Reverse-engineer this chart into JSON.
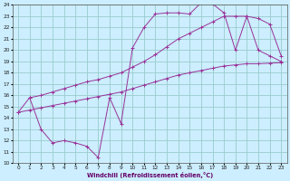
{
  "xlabel": "Windchill (Refroidissement éolien,°C)",
  "bg_color": "#cceeff",
  "grid_color": "#99cccc",
  "line_color": "#993399",
  "xlim": [
    -0.5,
    23.5
  ],
  "ylim": [
    10,
    24
  ],
  "xticks": [
    0,
    1,
    2,
    3,
    4,
    5,
    6,
    7,
    8,
    9,
    10,
    11,
    12,
    13,
    14,
    15,
    16,
    17,
    18,
    19,
    20,
    21,
    22,
    23
  ],
  "yticks": [
    10,
    11,
    12,
    13,
    14,
    15,
    16,
    17,
    18,
    19,
    20,
    21,
    22,
    23,
    24
  ],
  "series1_x": [
    0,
    1,
    2,
    3,
    4,
    5,
    6,
    7,
    8,
    9,
    10,
    11,
    12,
    13,
    14,
    15,
    16,
    17,
    18,
    19,
    20,
    21,
    22,
    23
  ],
  "series1_y": [
    14.5,
    14.7,
    14.9,
    15.1,
    15.3,
    15.5,
    15.7,
    15.9,
    16.1,
    16.3,
    16.6,
    16.9,
    17.2,
    17.5,
    17.8,
    18.0,
    18.2,
    18.4,
    18.6,
    18.7,
    18.8,
    18.8,
    18.85,
    18.9
  ],
  "series2_x": [
    0,
    1,
    2,
    3,
    4,
    5,
    6,
    7,
    8,
    9,
    10,
    11,
    12,
    13,
    14,
    15,
    16,
    17,
    18,
    19,
    20,
    21,
    22,
    23
  ],
  "series2_y": [
    14.5,
    15.8,
    13.0,
    11.8,
    12.0,
    11.8,
    11.5,
    10.5,
    15.8,
    13.5,
    20.2,
    22.0,
    23.2,
    23.3,
    23.3,
    23.2,
    24.2,
    24.1,
    23.3,
    20.0,
    23.0,
    20.0,
    19.5,
    19.0
  ],
  "series3_x": [
    1,
    2,
    3,
    4,
    5,
    6,
    7,
    8,
    9,
    10,
    11,
    12,
    13,
    14,
    15,
    16,
    17,
    18,
    19,
    20,
    21,
    22,
    23
  ],
  "series3_y": [
    15.8,
    16.0,
    16.3,
    16.6,
    16.9,
    17.2,
    17.4,
    17.7,
    18.0,
    18.5,
    19.0,
    19.6,
    20.3,
    21.0,
    21.5,
    22.0,
    22.5,
    23.0,
    23.0,
    23.0,
    22.8,
    22.3,
    19.5
  ]
}
